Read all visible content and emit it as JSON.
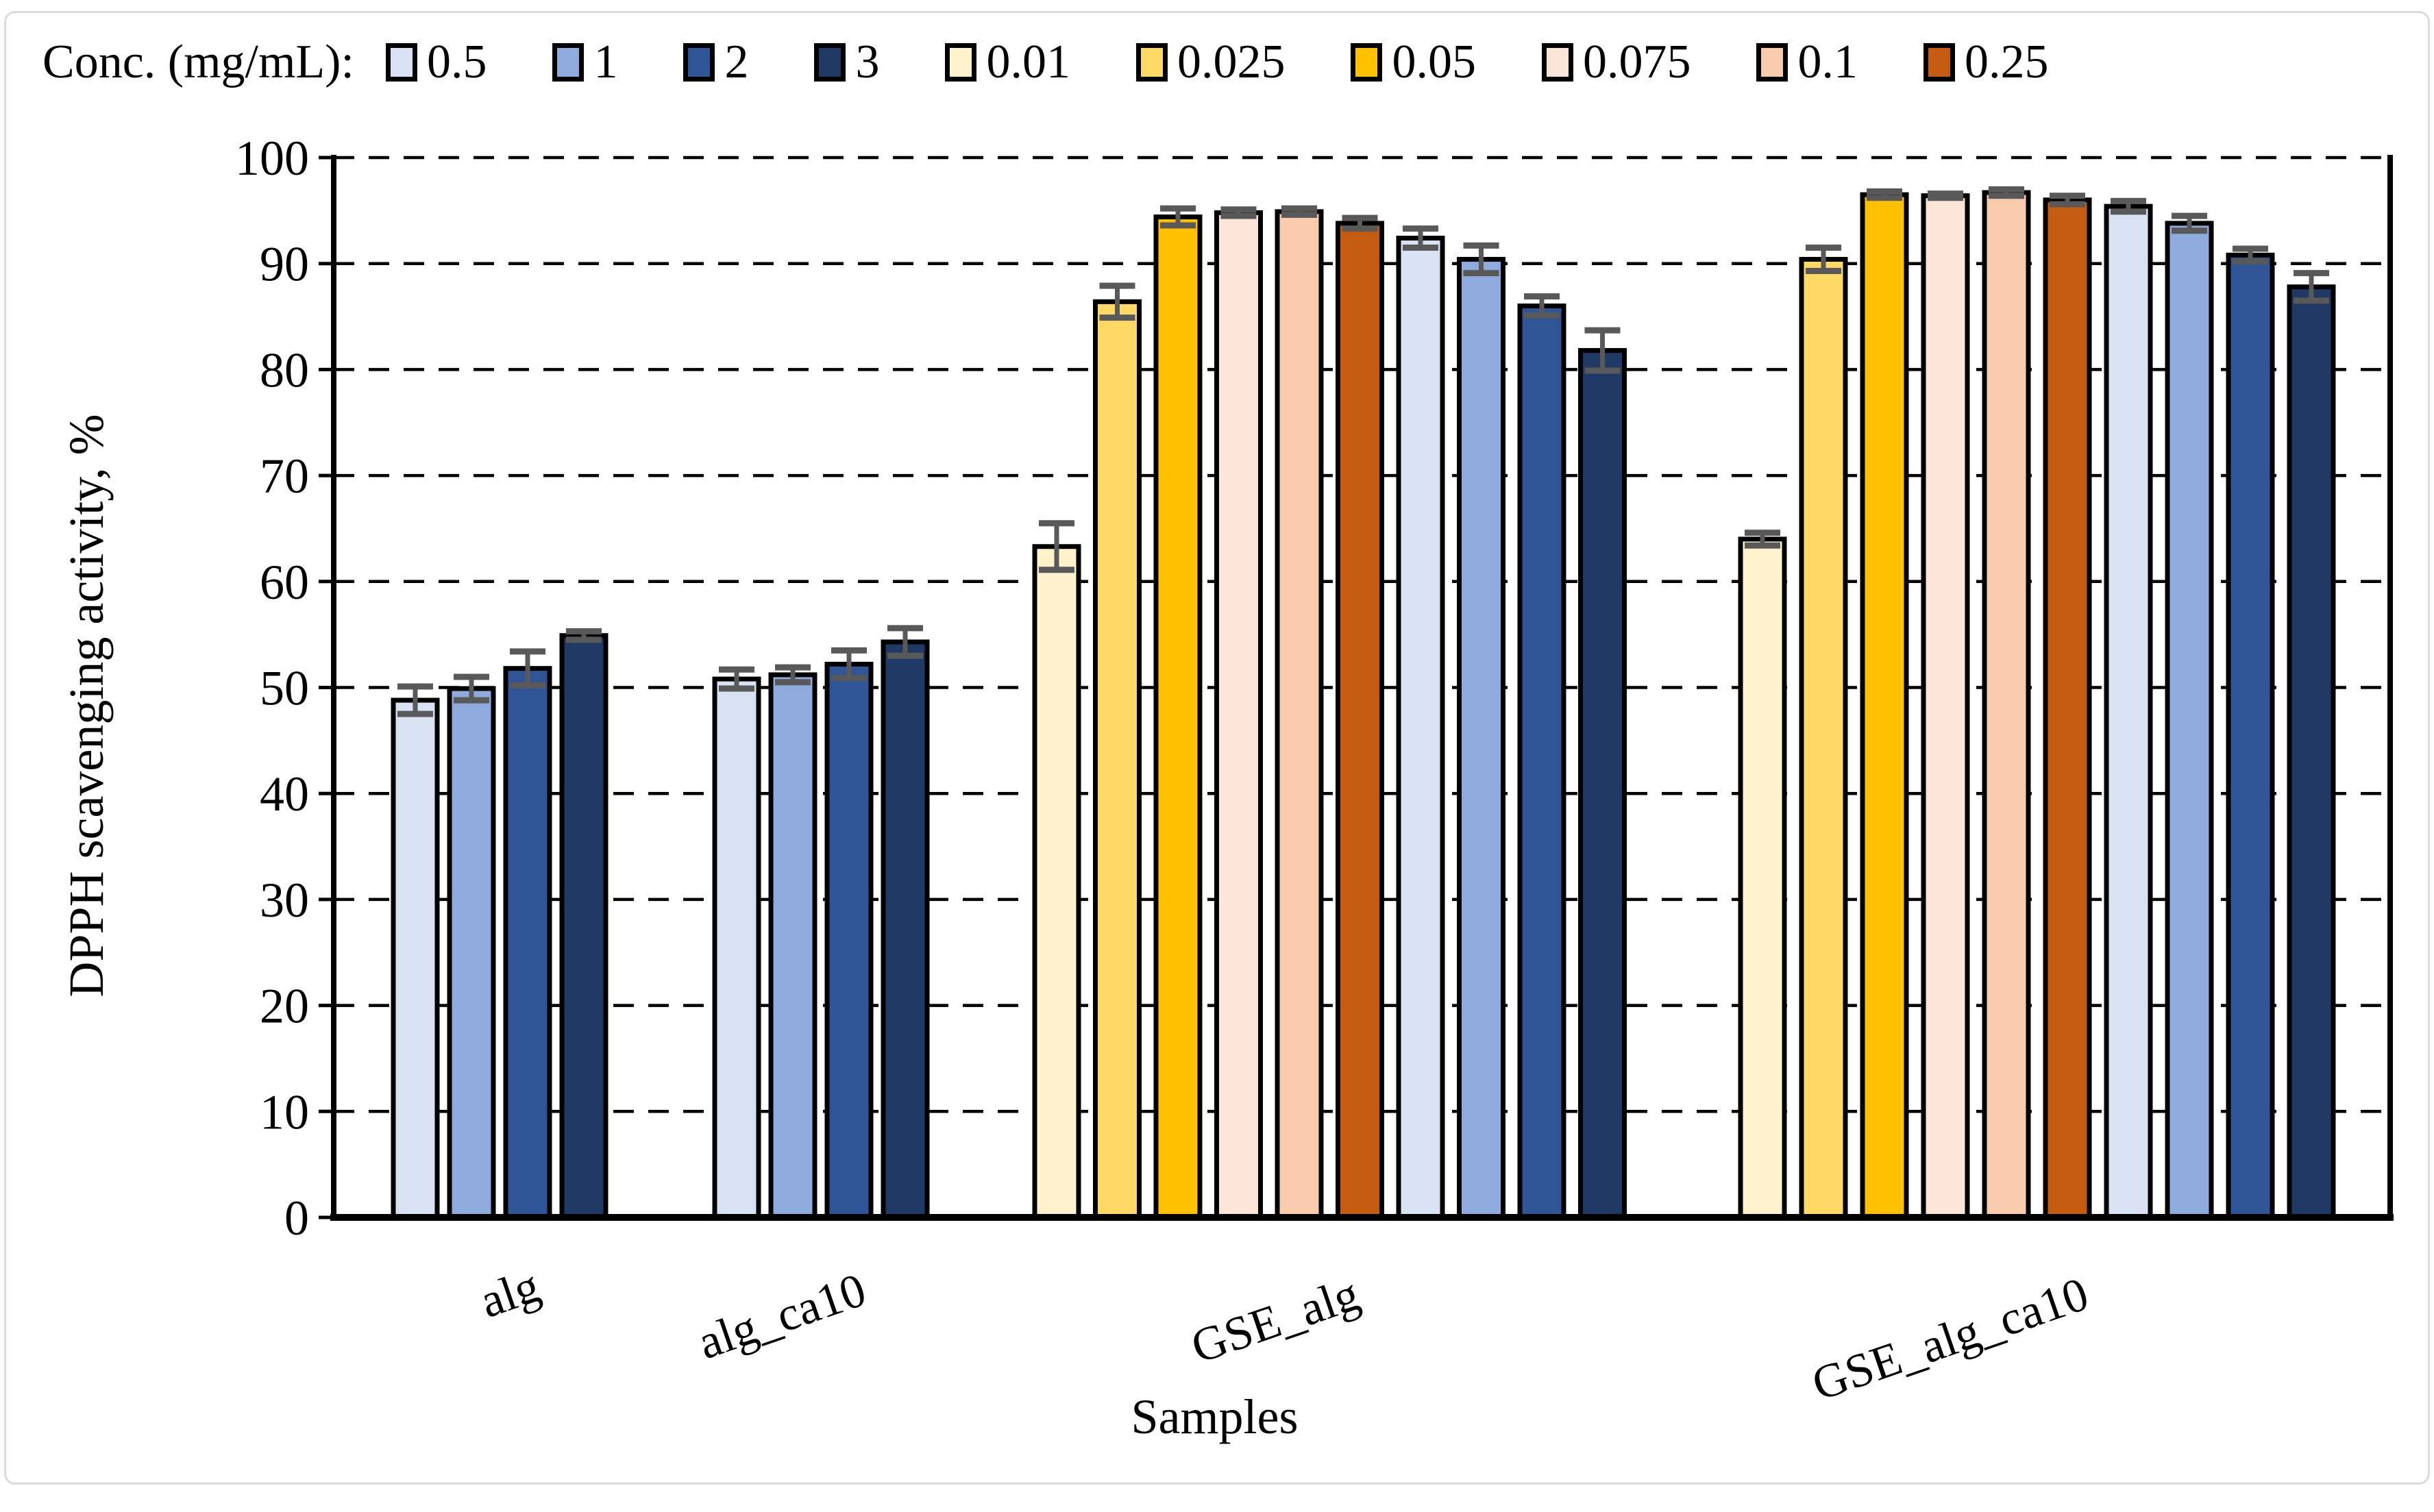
{
  "figure": {
    "background": "#FFFFFF",
    "frame_color": "#DCDCDC",
    "axis_color": "#000000",
    "gridline_color": "#000000",
    "error_bar_color": "#595959",
    "bar_border_color": "#000000"
  },
  "legend": {
    "title": "Conc. (mg/mL):",
    "entries": [
      {
        "label": "0.5",
        "color": "#D9E2F3"
      },
      {
        "label": "1",
        "color": "#8FAADC"
      },
      {
        "label": "2",
        "color": "#2F5597"
      },
      {
        "label": "3",
        "color": "#1F3864"
      },
      {
        "label": "0.01",
        "color": "#FFF2CC"
      },
      {
        "label": "0.025",
        "color": "#FFD966"
      },
      {
        "label": "0.05",
        "color": "#FFC000"
      },
      {
        "label": "0.075",
        "color": "#FBE5D6"
      },
      {
        "label": "0.1",
        "color": "#F8CBAD"
      },
      {
        "label": "0.25",
        "color": "#C55A11"
      }
    ]
  },
  "chart_data": {
    "type": "bar",
    "title": "",
    "xlabel": "Samples",
    "ylabel": "DPPH scavenging activity, %",
    "ylim": [
      0,
      100
    ],
    "ytick_step": 10,
    "grid": "horizontal-dashed",
    "legend_position": "top",
    "categories": [
      "alg",
      "alg_ca10",
      "GSE_alg",
      "GSE_alg_ca10"
    ],
    "series_order": [
      "0.5",
      "1",
      "2",
      "3",
      "0.01",
      "0.025",
      "0.05",
      "0.075",
      "0.1",
      "0.25"
    ],
    "groups": [
      {
        "category": "alg",
        "bars": [
          {
            "series": "0.5",
            "value": 48.8,
            "error": 1.3
          },
          {
            "series": "1",
            "value": 49.9,
            "error": 1.1
          },
          {
            "series": "2",
            "value": 51.8,
            "error": 1.6
          },
          {
            "series": "3",
            "value": 54.9,
            "error": 0.4
          }
        ]
      },
      {
        "category": "alg_ca10",
        "bars": [
          {
            "series": "0.5",
            "value": 50.8,
            "error": 0.9
          },
          {
            "series": "1",
            "value": 51.2,
            "error": 0.7
          },
          {
            "series": "2",
            "value": 52.2,
            "error": 1.3
          },
          {
            "series": "3",
            "value": 54.3,
            "error": 1.3
          }
        ]
      },
      {
        "category": "GSE_alg",
        "bars": [
          {
            "series": "0.01",
            "value": 63.3,
            "error": 2.2
          },
          {
            "series": "0.025",
            "value": 86.4,
            "error": 1.5
          },
          {
            "series": "0.05",
            "value": 94.4,
            "error": 0.8
          },
          {
            "series": "0.075",
            "value": 94.8,
            "error": 0.3
          },
          {
            "series": "0.1",
            "value": 94.9,
            "error": 0.3
          },
          {
            "series": "0.25",
            "value": 93.8,
            "error": 0.5
          },
          {
            "series": "0.5",
            "value": 92.4,
            "error": 0.9
          },
          {
            "series": "1",
            "value": 90.4,
            "error": 1.3
          },
          {
            "series": "2",
            "value": 86.0,
            "error": 0.9
          },
          {
            "series": "3",
            "value": 81.8,
            "error": 1.9
          }
        ]
      },
      {
        "category": "GSE_alg_ca10",
        "bars": [
          {
            "series": "0.01",
            "value": 64.0,
            "error": 0.6
          },
          {
            "series": "0.025",
            "value": 90.4,
            "error": 1.1
          },
          {
            "series": "0.05",
            "value": 96.5,
            "error": 0.3
          },
          {
            "series": "0.075",
            "value": 96.4,
            "error": 0.2
          },
          {
            "series": "0.1",
            "value": 96.7,
            "error": 0.3
          },
          {
            "series": "0.25",
            "value": 96.0,
            "error": 0.4
          },
          {
            "series": "0.5",
            "value": 95.4,
            "error": 0.5
          },
          {
            "series": "1",
            "value": 93.8,
            "error": 0.7
          },
          {
            "series": "2",
            "value": 90.8,
            "error": 0.6
          },
          {
            "series": "3",
            "value": 87.8,
            "error": 1.3
          }
        ]
      }
    ]
  }
}
